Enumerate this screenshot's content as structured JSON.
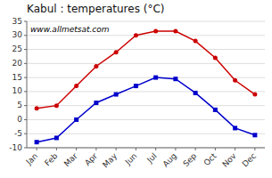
{
  "chart_data": {
    "type": "line",
    "title": "Kabul : temperatures (°C)",
    "categories": [
      "Jan",
      "Feb",
      "Mar",
      "Apr",
      "May",
      "Jun",
      "Jul",
      "Aug",
      "Sep",
      "Oct",
      "Nov",
      "Dec"
    ],
    "series": [
      {
        "color": "#cc0000",
        "marker": "circle",
        "values": [
          4,
          5,
          12,
          19,
          24,
          30,
          31.5,
          31.5,
          28,
          22,
          14,
          9
        ]
      },
      {
        "color": "#0000cc",
        "marker": "square",
        "values": [
          -8,
          -6.5,
          0,
          6,
          9,
          12,
          15,
          14.5,
          9.5,
          3.5,
          -3,
          -5.5
        ]
      }
    ],
    "ylim": [
      -10,
      35
    ],
    "yticks": [
      -10,
      -5,
      0,
      5,
      10,
      15,
      20,
      25,
      30,
      35
    ],
    "grid": true,
    "annotations": [
      "www.allmetsat.com"
    ]
  }
}
